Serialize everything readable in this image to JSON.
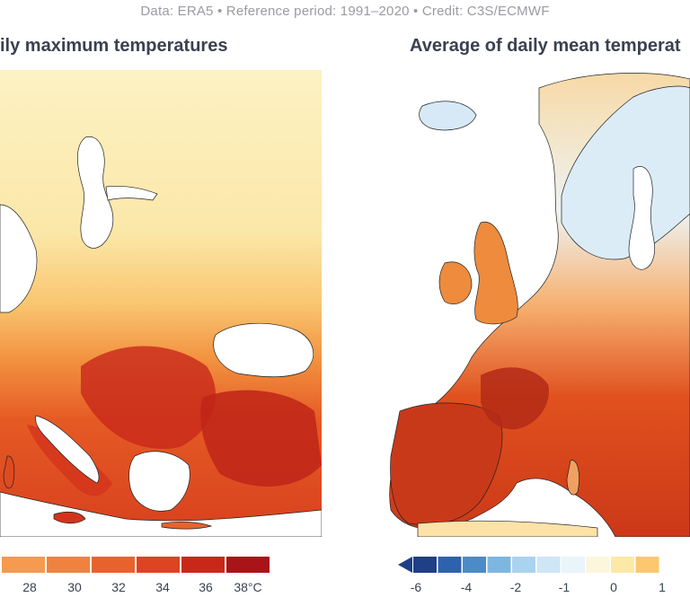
{
  "header": {
    "credit": "Data: ERA5 • Reference period: 1991–2020 • Credit: C3S/ECMWF"
  },
  "left_panel": {
    "title": "ily maximum temperatures",
    "colorbar": {
      "colors": [
        "#f9b060",
        "#f59a4e",
        "#f0823e",
        "#e8632c",
        "#dc4422",
        "#c8281a",
        "#a81418",
        "#7a0c14"
      ],
      "ticks": [
        "28",
        "30",
        "32",
        "34",
        "36",
        "38°C"
      ]
    }
  },
  "right_panel": {
    "title": "Average of daily mean temperat",
    "colorbar": {
      "colors": [
        "#1f3f87",
        "#2f62ae",
        "#4d8ac8",
        "#7fb6e0",
        "#aad3ef",
        "#cfe6f6",
        "#eaf4fb",
        "#fbf6dc",
        "#fde8a8",
        "#fbc86e"
      ],
      "ticks": [
        "-6",
        "-4",
        "-2",
        "-1",
        "0",
        "1"
      ]
    }
  },
  "colors": {
    "sea": "#ffffff",
    "coast": "#222222",
    "pale": "#fbecb0",
    "warm": "#f08a3c",
    "hot": "#c8281a",
    "cool": "#d6eaf7"
  }
}
